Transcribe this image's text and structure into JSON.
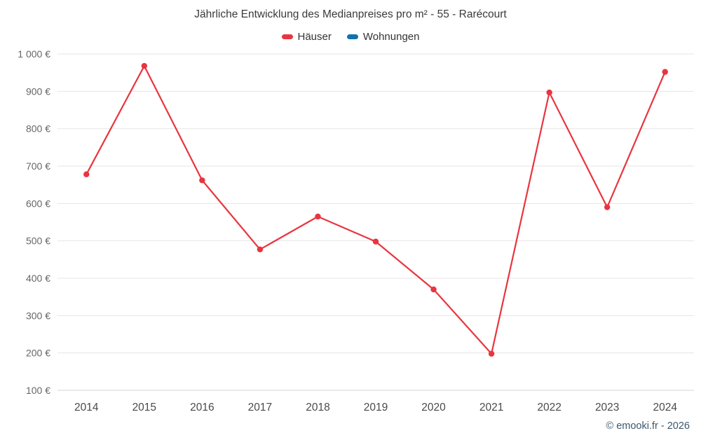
{
  "chart_data": {
    "type": "line",
    "title": "Jährliche Entwicklung des Medianpreises pro m² - 55 - Rarécourt",
    "categories": [
      "2014",
      "2015",
      "2016",
      "2017",
      "2018",
      "2019",
      "2020",
      "2021",
      "2022",
      "2023",
      "2024"
    ],
    "series": [
      {
        "name": "Häuser",
        "color": "#e8353f",
        "values": [
          678,
          968,
          662,
          477,
          565,
          498,
          370,
          198,
          897,
          590,
          952
        ]
      },
      {
        "name": "Wohnungen",
        "color": "#1272ae",
        "values": []
      }
    ],
    "xlabel": "",
    "ylabel": "",
    "ylim": [
      100,
      1000
    ],
    "y_tick_step": 100,
    "y_tick_labels": [
      "100 €",
      "200 €",
      "300 €",
      "400 €",
      "500 €",
      "600 €",
      "700 €",
      "800 €",
      "900 €",
      "1 000 €"
    ],
    "grid": "horizontal",
    "legend_position": "top"
  },
  "footer": {
    "credit": "© emooki.fr - 2026"
  },
  "colors": {
    "background": "#ffffff",
    "grid": "#e6e6e6",
    "axis_line": "#d4d4d4",
    "tick_label": "#666666",
    "x_label": "#4a4a4a",
    "title": "#3a3a3a",
    "credit": "#3e576f"
  }
}
